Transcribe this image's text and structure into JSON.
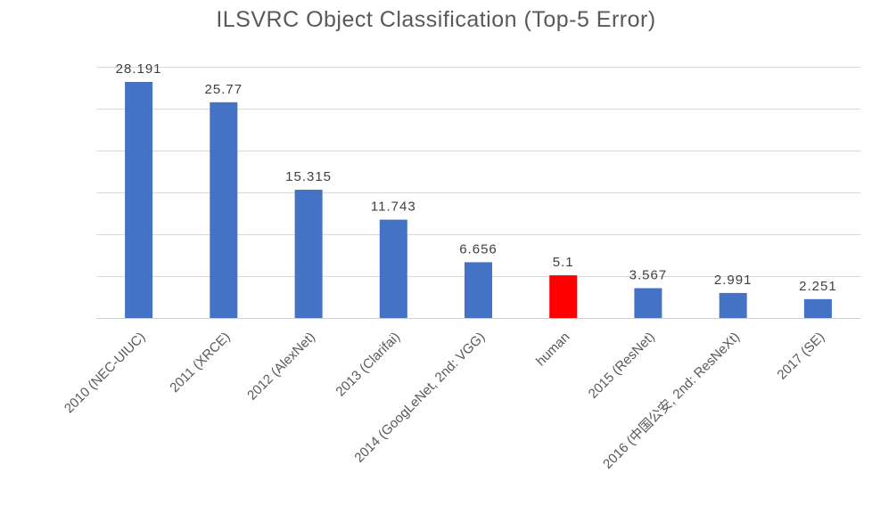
{
  "chart_data": {
    "type": "bar",
    "title": "ILSVRC Object Classification (Top-5 Error)",
    "xlabel": "",
    "ylabel": "",
    "categories": [
      "2010 (NEC-UIUC)",
      "2011 (XRCE)",
      "2012 (AlexNet)",
      "2013 (Clarifai)",
      "2014 (GoogLeNet, 2nd: VGG)",
      "human",
      "2015 (ResNet)",
      "2016 (中国公安, 2nd: ResNeXt)",
      "2017 (SE)"
    ],
    "values": [
      28.191,
      25.77,
      15.315,
      11.743,
      6.656,
      5.1,
      3.567,
      2.991,
      2.251
    ],
    "data_labels": [
      "28.191",
      "25.77",
      "15.315",
      "11.743",
      "6.656",
      "5.1",
      "3.567",
      "2.991",
      "2.251"
    ],
    "colors": [
      "#4472c4",
      "#4472c4",
      "#4472c4",
      "#4472c4",
      "#4472c4",
      "#ff0000",
      "#4472c4",
      "#4472c4",
      "#4472c4"
    ],
    "ylim": [
      0,
      30
    ],
    "gridlines": [
      5,
      10,
      15,
      20,
      25,
      30
    ],
    "grid": true,
    "legend": "none",
    "y_tick_labels_visible": false
  }
}
